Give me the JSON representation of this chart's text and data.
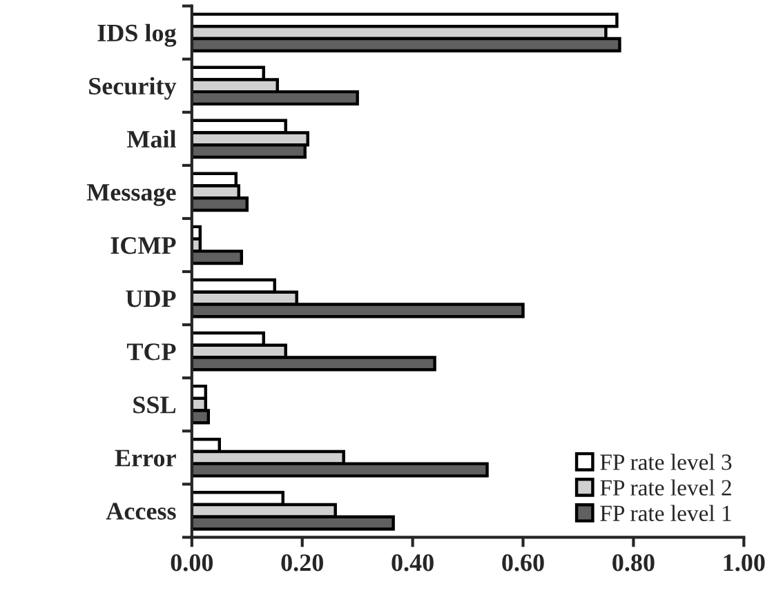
{
  "chart_data": {
    "type": "bar",
    "orientation": "horizontal",
    "categories": [
      "IDS log",
      "Security",
      "Mail",
      "Message",
      "ICMP",
      "UDP",
      "TCP",
      "SSL",
      "Error",
      "Access"
    ],
    "series": [
      {
        "name": "FP rate level 3",
        "color": "#ffffff",
        "values": [
          0.77,
          0.13,
          0.17,
          0.08,
          0.015,
          0.15,
          0.13,
          0.025,
          0.05,
          0.165
        ]
      },
      {
        "name": "FP rate level 2",
        "color": "#d0d0d0",
        "values": [
          0.75,
          0.155,
          0.21,
          0.085,
          0.015,
          0.19,
          0.17,
          0.025,
          0.275,
          0.26
        ]
      },
      {
        "name": "FP rate level 1",
        "color": "#606060",
        "values": [
          0.775,
          0.3,
          0.205,
          0.1,
          0.09,
          0.6,
          0.44,
          0.03,
          0.535,
          0.365
        ]
      }
    ],
    "xlim": [
      0,
      1.0
    ],
    "xticks": [
      {
        "value": 0,
        "label": "0.00"
      },
      {
        "value": 0.2,
        "label": "0.20"
      },
      {
        "value": 0.4,
        "label": "0.40"
      },
      {
        "value": 0.6,
        "label": "0.60"
      },
      {
        "value": 0.8,
        "label": "0.80"
      },
      {
        "value": 1.0,
        "label": "1.00"
      }
    ],
    "grid": false,
    "legend": "bottom right"
  }
}
